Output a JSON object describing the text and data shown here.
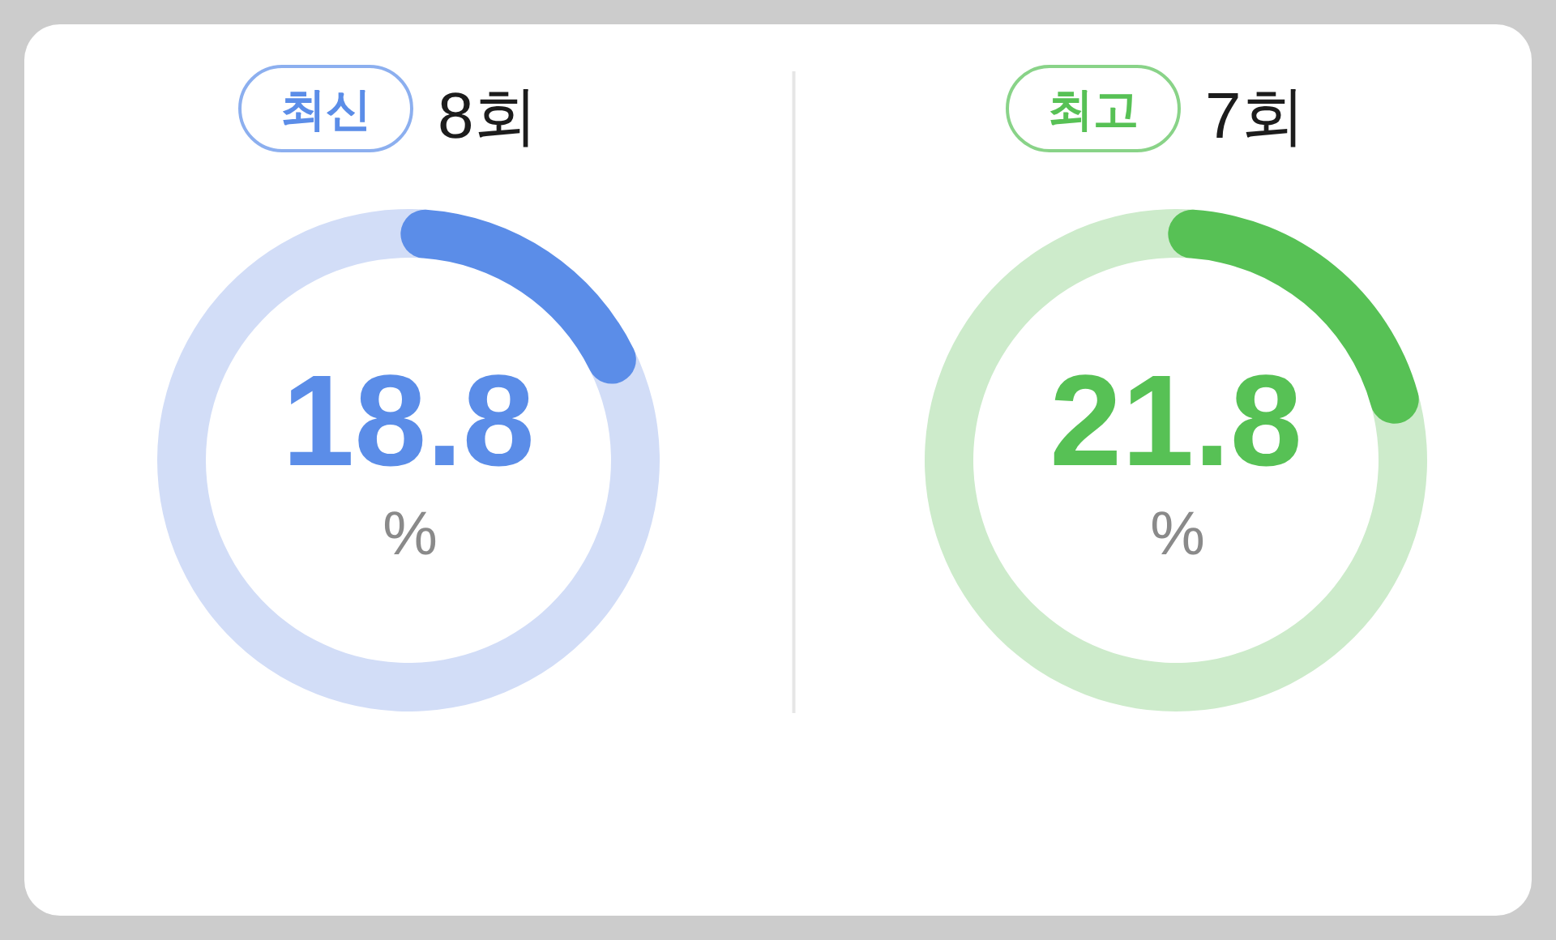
{
  "chart_data": [
    {
      "type": "donut",
      "title": "최신",
      "subtitle": "8회",
      "categories": [
        null,
        null
      ],
      "values": [
        18.8,
        81.2
      ],
      "colors": [
        "#5b8de8",
        "#d2ddf7"
      ],
      "value_labels": [
        "18.8",
        null
      ],
      "annotations": [
        "%"
      ]
    },
    {
      "type": "donut",
      "title": "최고",
      "subtitle": "7회",
      "categories": [
        null,
        null
      ],
      "values": [
        21.8,
        78.2
      ],
      "colors": [
        "#57c155",
        "#cdebcb"
      ],
      "value_labels": [
        "21.8",
        null
      ],
      "annotations": [
        "%"
      ]
    }
  ]
}
